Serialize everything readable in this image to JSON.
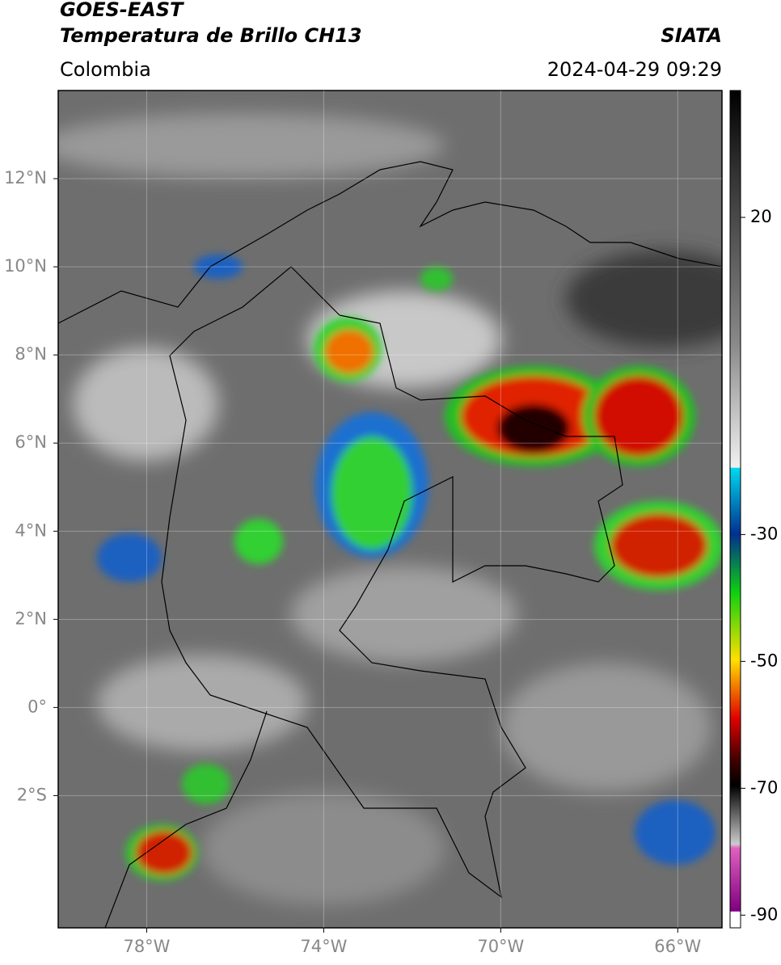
{
  "header": {
    "title_line1": "GOES-EAST",
    "title_line2": "Temperatura de Brillo CH13",
    "source": "SIATA",
    "region": "Colombia",
    "timestamp": "2024-04-29 09:29"
  },
  "map": {
    "xlim": [
      -80,
      -65
    ],
    "ylim": [
      -5,
      14
    ],
    "xticks": [
      {
        "value": -78,
        "label": "78°W"
      },
      {
        "value": -74,
        "label": "74°W"
      },
      {
        "value": -70,
        "label": "70°W"
      },
      {
        "value": -66,
        "label": "66°W"
      }
    ],
    "yticks": [
      {
        "value": 12,
        "label": "12°N"
      },
      {
        "value": 10,
        "label": "10°N"
      },
      {
        "value": 8,
        "label": "8°N"
      },
      {
        "value": 6,
        "label": "6°N"
      },
      {
        "value": 4,
        "label": "4°N"
      },
      {
        "value": 2,
        "label": "2°N"
      },
      {
        "value": 0,
        "label": "0°"
      },
      {
        "value": -2,
        "label": "2°S"
      }
    ],
    "grid": true
  },
  "colorbar": {
    "lim": [
      -92,
      40
    ],
    "ticks": [
      20,
      -30,
      -50,
      -70,
      -90
    ]
  }
}
